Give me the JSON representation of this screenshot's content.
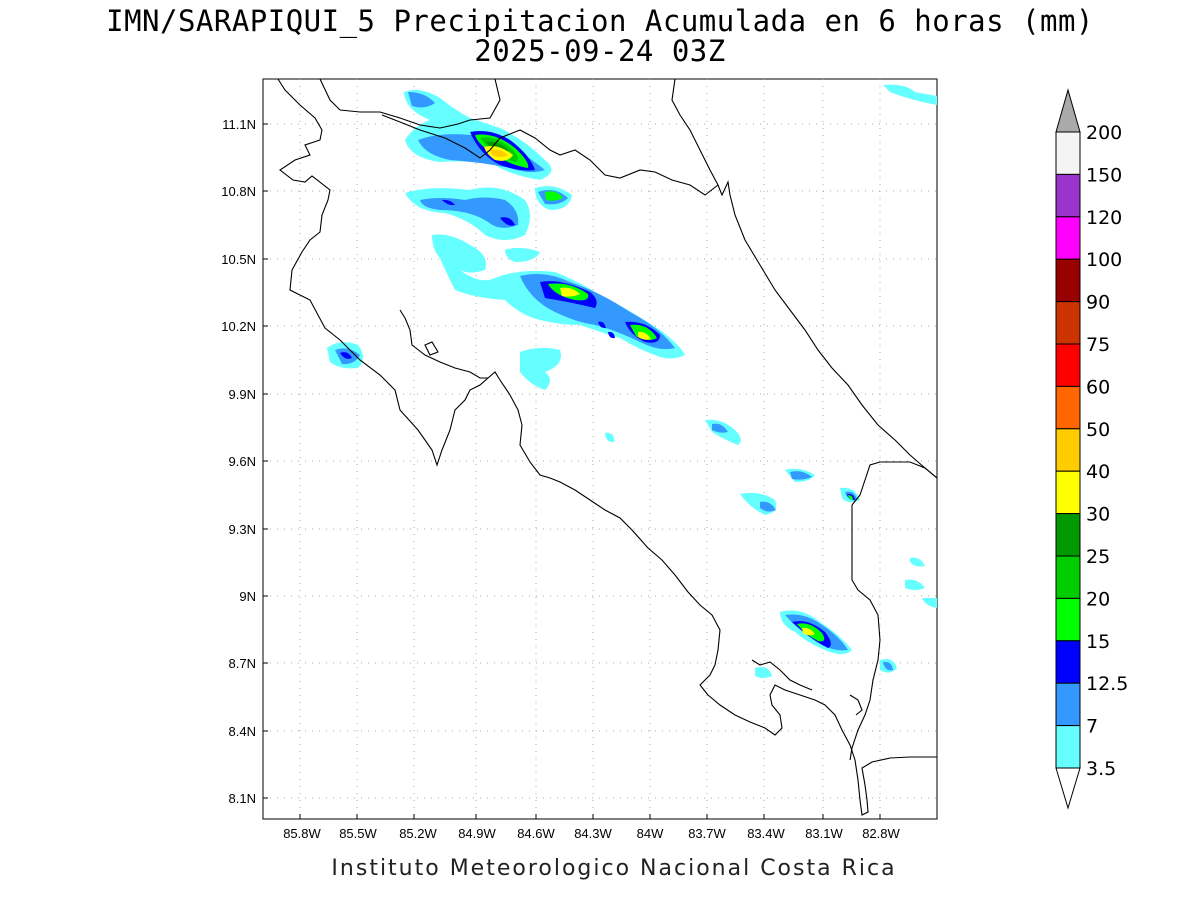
{
  "title_line1": "IMN/SARAPIQUI_5 Precipitacion Acumulada en 6 horas (mm)",
  "title_line2": "2025-09-24 03Z",
  "footer": "Instituto Meteorologico Nacional Costa Rica",
  "lat_labels": [
    "11.1N",
    "10.8N",
    "10.5N",
    "10.2N",
    "9.9N",
    "9.6N",
    "9.3N",
    "9N",
    "8.7N",
    "8.4N",
    "8.1N"
  ],
  "lon_labels": [
    "85.8W",
    "85.5W",
    "85.2W",
    "84.9W",
    "84.6W",
    "84.3W",
    "84W",
    "83.7W",
    "83.4W",
    "83.1W",
    "82.8W"
  ],
  "colorbar": {
    "labels": [
      "200",
      "150",
      "120",
      "100",
      "90",
      "75",
      "60",
      "50",
      "40",
      "30",
      "25",
      "20",
      "15",
      "12.5",
      "7",
      "3.5"
    ],
    "colors": [
      "#f4f4f4",
      "#9933cc",
      "#ff00ff",
      "#990000",
      "#cc3300",
      "#ff0000",
      "#ff6600",
      "#ffcc00",
      "#ffff00",
      "#009900",
      "#00cc00",
      "#00ff00",
      "#0000ff",
      "#3399ff",
      "#66ffff"
    ],
    "top_color": "#aaaaaa"
  },
  "colors": {
    "c3_5": "#66ffff",
    "c7": "#3399ff",
    "c12_5": "#0000ff",
    "c15": "#00ff00",
    "c20": "#00cc00",
    "c25": "#009900",
    "c30": "#ffff00",
    "c40": "#ffcc00"
  }
}
